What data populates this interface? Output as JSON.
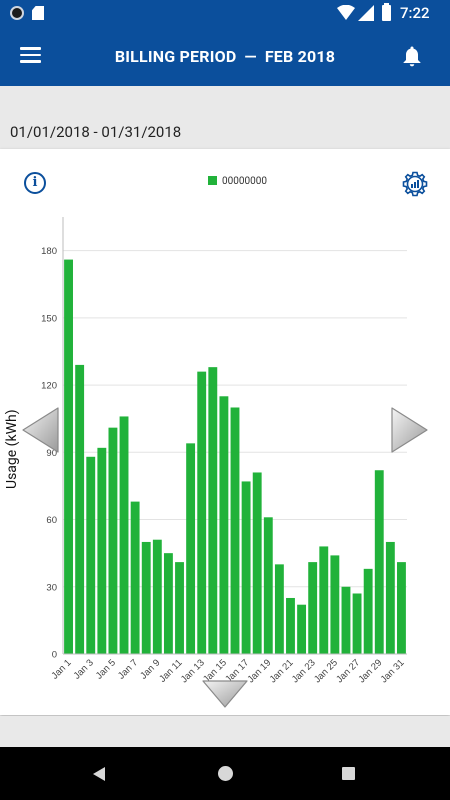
{
  "status_bar": {
    "time": "7:22"
  },
  "header": {
    "title_left": "BILLING PERIOD",
    "separator": "—",
    "title_right": "FEB 2018"
  },
  "period": {
    "range": "01/01/2018 - 01/31/2018"
  },
  "colors": {
    "accent": "#0b4f9c",
    "bar": "#21b23a"
  },
  "icons": {
    "menu": "hamburger-menu-icon",
    "bell": "bell-icon",
    "info": "info-icon",
    "settings": "chart-settings-gear-icon",
    "left": "chevron-left-icon",
    "right": "chevron-right-icon",
    "down": "chevron-down-icon"
  },
  "chart_data": {
    "type": "bar",
    "legend": [
      "00000000"
    ],
    "legend_placement": "top-center",
    "ylabel": "Usage (kWh)",
    "xlabel": "",
    "ylim": [
      0,
      195
    ],
    "yticks": [
      0,
      30,
      60,
      90,
      120,
      150,
      180
    ],
    "grid": true,
    "categories": [
      "Jan 1",
      "Jan 2",
      "Jan 3",
      "Jan 4",
      "Jan 5",
      "Jan 6",
      "Jan 7",
      "Jan 8",
      "Jan 9",
      "Jan 10",
      "Jan 11",
      "Jan 12",
      "Jan 13",
      "Jan 14",
      "Jan 15",
      "Jan 16",
      "Jan 17",
      "Jan 18",
      "Jan 19",
      "Jan 20",
      "Jan 21",
      "Jan 22",
      "Jan 23",
      "Jan 24",
      "Jan 25",
      "Jan 26",
      "Jan 27",
      "Jan 28",
      "Jan 29",
      "Jan 30",
      "Jan 31"
    ],
    "tick_labels": [
      "Jan 1",
      "Jan 3",
      "Jan 5",
      "Jan 7",
      "Jan 9",
      "Jan 11",
      "Jan 13",
      "Jan 15",
      "Jan 17",
      "Jan 19",
      "Jan 21",
      "Jan 23",
      "Jan 25",
      "Jan 27",
      "Jan 29",
      "Jan 31"
    ],
    "values": [
      176,
      129,
      88,
      92,
      101,
      106,
      68,
      50,
      51,
      45,
      41,
      94,
      126,
      128,
      115,
      110,
      77,
      81,
      61,
      40,
      25,
      22,
      41,
      48,
      44,
      30,
      27,
      38,
      82,
      50,
      41
    ]
  }
}
